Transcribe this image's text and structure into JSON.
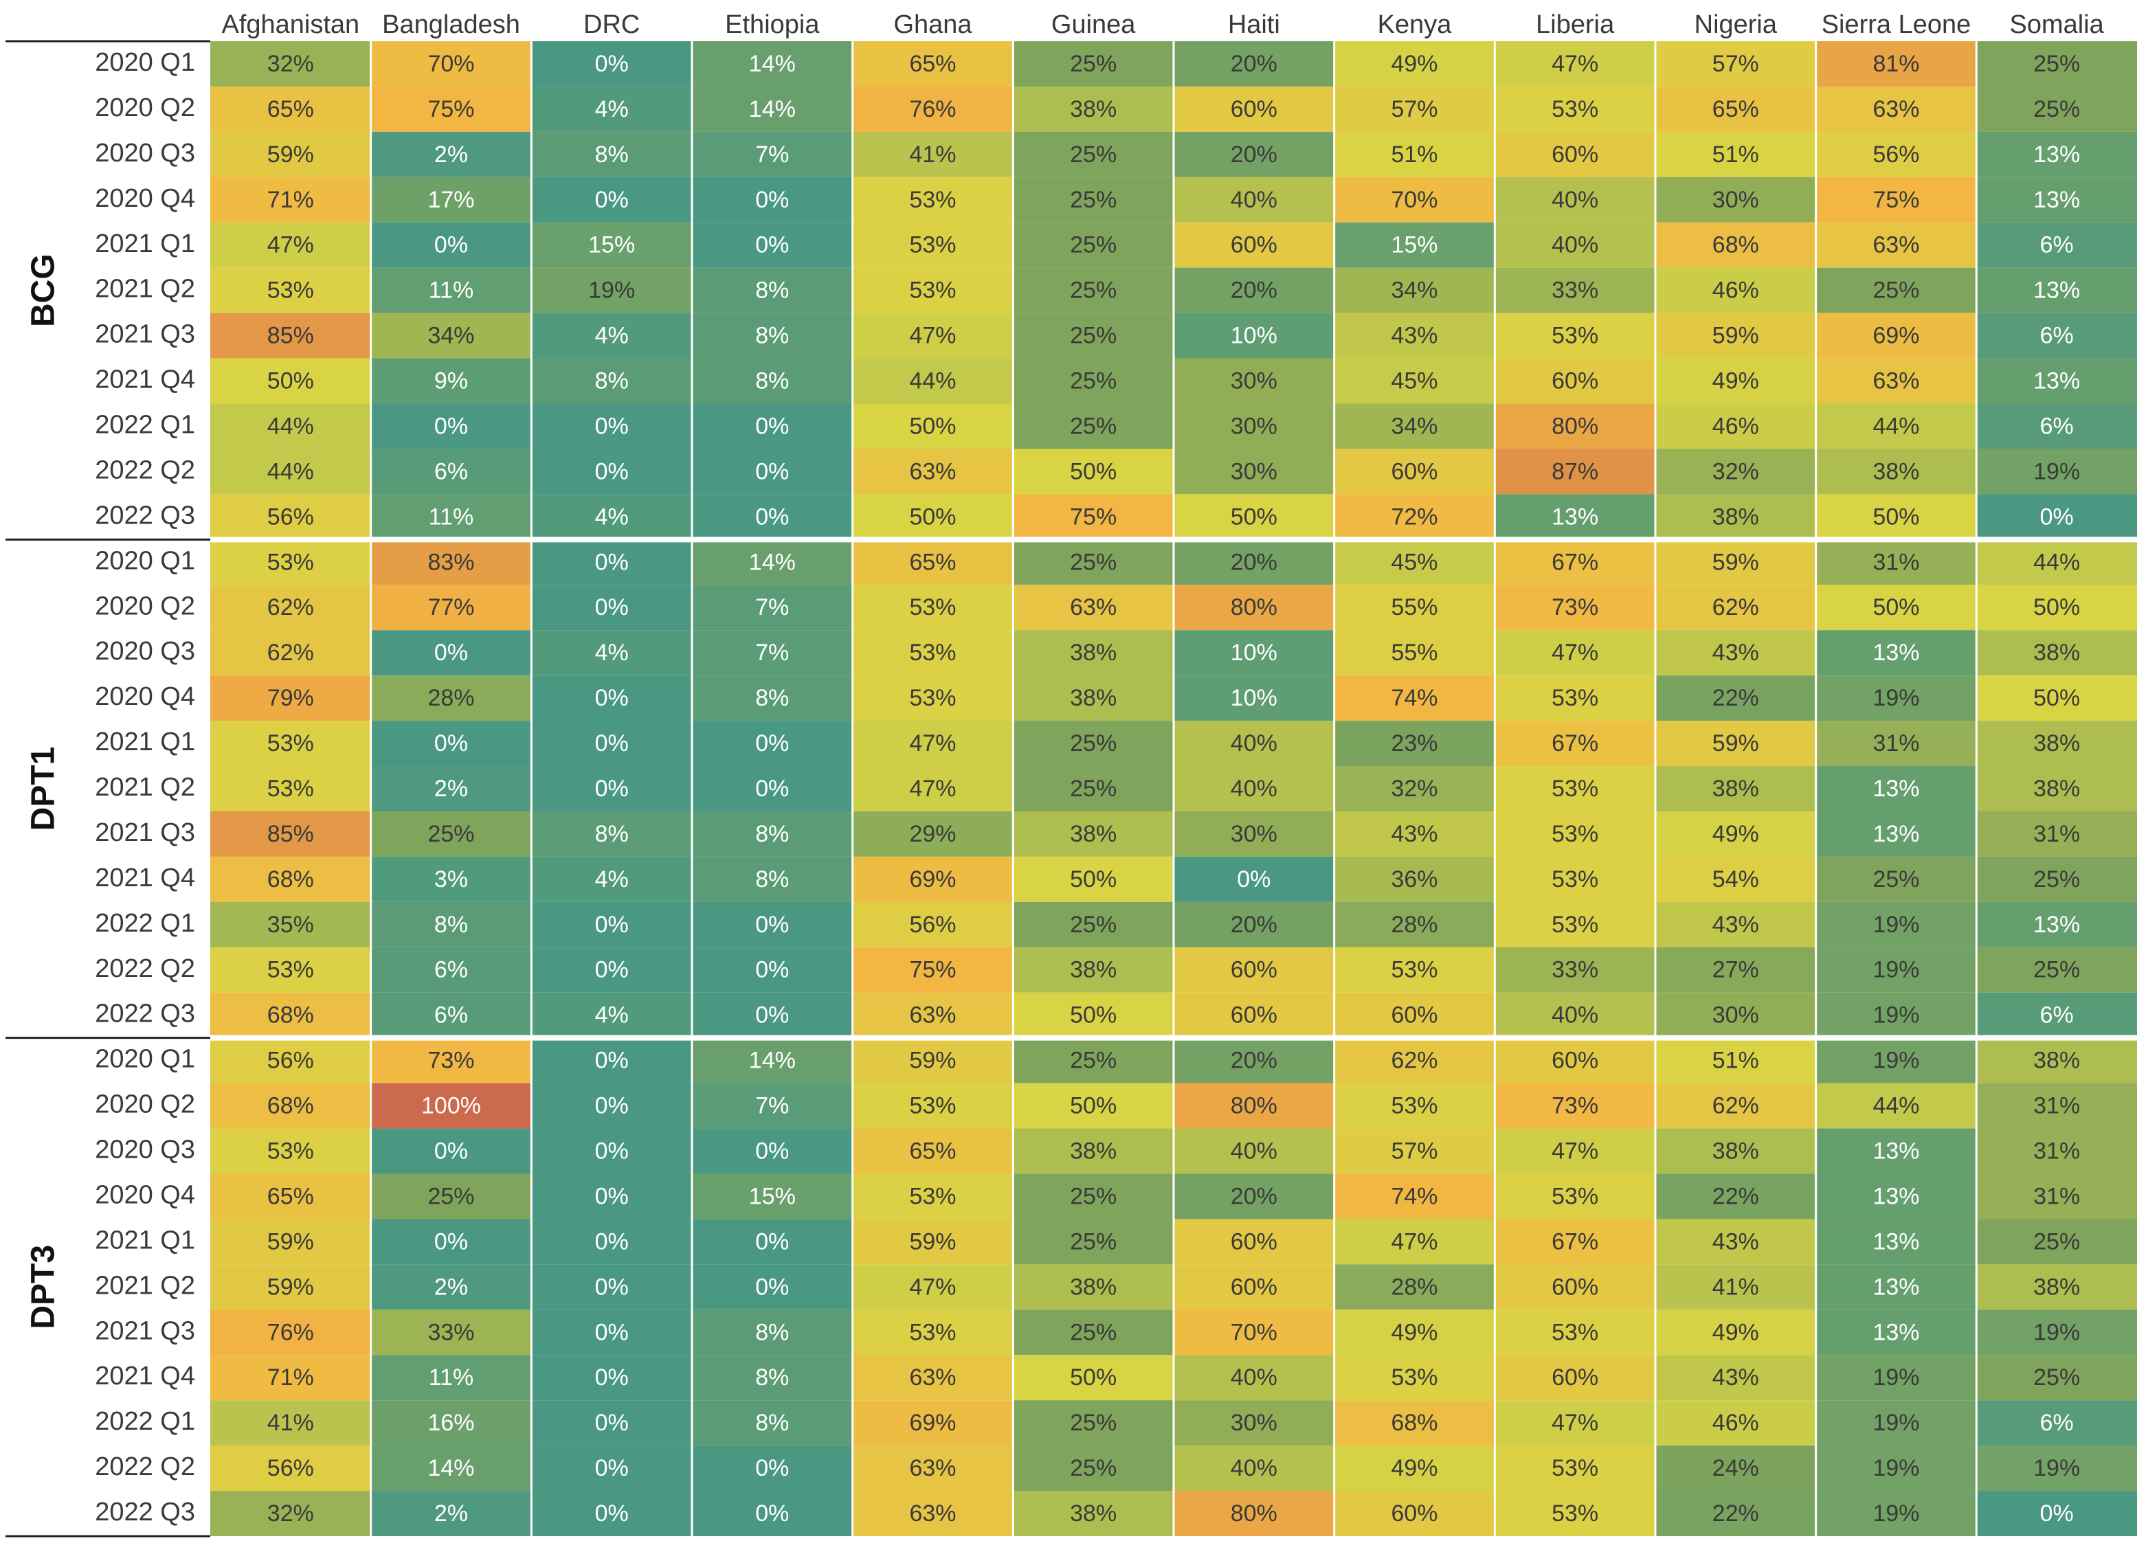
{
  "chart_data": {
    "type": "heatmap",
    "title": "",
    "xlabel": "",
    "ylabel": "",
    "value_suffix": "%",
    "countries": [
      "Afghanistan",
      "Bangladesh",
      "DRC",
      "Ethiopia",
      "Ghana",
      "Guinea",
      "Haiti",
      "Kenya",
      "Liberia",
      "Nigeria",
      "Sierra Leone",
      "Somalia"
    ],
    "periods": [
      "2020 Q1",
      "2020 Q2",
      "2020 Q3",
      "2020 Q4",
      "2021 Q1",
      "2021 Q2",
      "2021 Q3",
      "2021 Q4",
      "2022 Q1",
      "2022 Q2",
      "2022 Q3"
    ],
    "color_scale": {
      "range": [
        0,
        100
      ],
      "stops": [
        {
          "at": 0,
          "color": "#4a9882"
        },
        {
          "at": 25,
          "color": "#7fa55c"
        },
        {
          "at": 50,
          "color": "#d9d444"
        },
        {
          "at": 75,
          "color": "#f3b643"
        },
        {
          "at": 100,
          "color": "#cb6a4d"
        }
      ],
      "text_light": "#ffffff",
      "text_dark": "#3a3a3a",
      "grid_line": "#ffffff",
      "separator_line": "#222222"
    },
    "groups": [
      {
        "name": "BCG",
        "values": [
          [
            32,
            70,
            0,
            14,
            65,
            25,
            20,
            49,
            47,
            57,
            81,
            25
          ],
          [
            65,
            75,
            4,
            14,
            76,
            38,
            60,
            57,
            53,
            65,
            63,
            25
          ],
          [
            59,
            2,
            8,
            7,
            41,
            25,
            20,
            51,
            60,
            51,
            56,
            13
          ],
          [
            71,
            17,
            0,
            0,
            53,
            25,
            40,
            70,
            40,
            30,
            75,
            13
          ],
          [
            47,
            0,
            15,
            0,
            53,
            25,
            60,
            15,
            40,
            68,
            63,
            6
          ],
          [
            53,
            11,
            19,
            8,
            53,
            25,
            20,
            34,
            33,
            46,
            25,
            13
          ],
          [
            85,
            34,
            4,
            8,
            47,
            25,
            10,
            43,
            53,
            59,
            69,
            6
          ],
          [
            50,
            9,
            8,
            8,
            44,
            25,
            30,
            45,
            60,
            49,
            63,
            13
          ],
          [
            44,
            0,
            0,
            0,
            50,
            25,
            30,
            34,
            80,
            46,
            44,
            6
          ],
          [
            44,
            6,
            0,
            0,
            63,
            50,
            30,
            60,
            87,
            32,
            38,
            19
          ],
          [
            56,
            11,
            4,
            0,
            50,
            75,
            50,
            72,
            13,
            38,
            50,
            0
          ]
        ]
      },
      {
        "name": "DPT1",
        "values": [
          [
            53,
            83,
            0,
            14,
            65,
            25,
            20,
            45,
            67,
            59,
            31,
            44
          ],
          [
            62,
            77,
            0,
            7,
            53,
            63,
            80,
            55,
            73,
            62,
            50,
            50
          ],
          [
            62,
            0,
            4,
            7,
            53,
            38,
            10,
            55,
            47,
            43,
            13,
            38
          ],
          [
            79,
            28,
            0,
            8,
            53,
            38,
            10,
            74,
            53,
            22,
            19,
            50
          ],
          [
            53,
            0,
            0,
            0,
            47,
            25,
            40,
            23,
            67,
            59,
            31,
            38
          ],
          [
            53,
            2,
            0,
            0,
            47,
            25,
            40,
            32,
            53,
            38,
            13,
            38
          ],
          [
            85,
            25,
            8,
            8,
            29,
            38,
            30,
            43,
            53,
            49,
            13,
            31
          ],
          [
            68,
            3,
            4,
            8,
            69,
            50,
            0,
            36,
            53,
            54,
            25,
            25
          ],
          [
            35,
            8,
            0,
            0,
            56,
            25,
            20,
            28,
            53,
            43,
            19,
            13
          ],
          [
            53,
            6,
            0,
            0,
            75,
            38,
            60,
            53,
            33,
            27,
            19,
            25
          ],
          [
            68,
            6,
            4,
            0,
            63,
            50,
            60,
            60,
            40,
            30,
            19,
            6
          ]
        ]
      },
      {
        "name": "DPT3",
        "values": [
          [
            56,
            73,
            0,
            14,
            59,
            25,
            20,
            62,
            60,
            51,
            19,
            38
          ],
          [
            68,
            100,
            0,
            7,
            53,
            50,
            80,
            53,
            73,
            62,
            44,
            31
          ],
          [
            53,
            0,
            0,
            0,
            65,
            38,
            40,
            57,
            47,
            38,
            13,
            31
          ],
          [
            65,
            25,
            0,
            15,
            53,
            25,
            20,
            74,
            53,
            22,
            13,
            31
          ],
          [
            59,
            0,
            0,
            0,
            59,
            25,
            60,
            47,
            67,
            43,
            13,
            25
          ],
          [
            59,
            2,
            0,
            0,
            47,
            38,
            60,
            28,
            60,
            41,
            13,
            38
          ],
          [
            76,
            33,
            0,
            8,
            53,
            25,
            70,
            49,
            53,
            49,
            13,
            19
          ],
          [
            71,
            11,
            0,
            8,
            63,
            50,
            40,
            53,
            60,
            43,
            19,
            25
          ],
          [
            41,
            16,
            0,
            8,
            69,
            25,
            30,
            68,
            47,
            46,
            19,
            6
          ],
          [
            56,
            14,
            0,
            0,
            63,
            25,
            40,
            49,
            53,
            24,
            19,
            19
          ],
          [
            32,
            2,
            0,
            0,
            63,
            38,
            80,
            60,
            53,
            22,
            19,
            0
          ]
        ]
      }
    ]
  }
}
